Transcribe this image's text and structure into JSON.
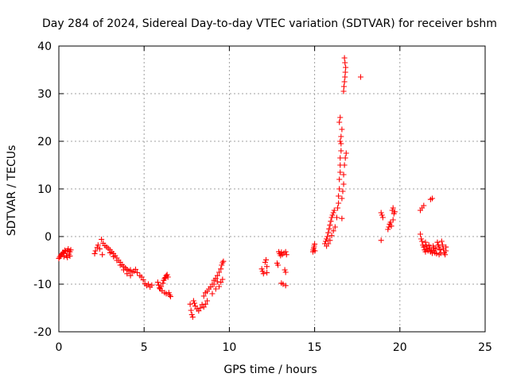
{
  "chart_data": {
    "type": "scatter",
    "title": "Day 284 of 2024, Sidereal Day-to-day VTEC variation (SDTVAR) for receiver bshm",
    "xlabel": "GPS time / hours",
    "ylabel": "SDTVAR / TECUs",
    "xlim": [
      0,
      25
    ],
    "ylim": [
      -20,
      40
    ],
    "xticks": [
      0,
      5,
      10,
      15,
      20,
      25
    ],
    "yticks": [
      -20,
      -10,
      0,
      10,
      20,
      30,
      40
    ],
    "grid": true,
    "marker": "plus",
    "color": "#ff0000",
    "series": [
      {
        "name": "SDTVAR",
        "points": [
          [
            0.0,
            -4.6
          ],
          [
            0.05,
            -4.3
          ],
          [
            0.1,
            -4.0
          ],
          [
            0.15,
            -3.8
          ],
          [
            0.2,
            -3.6
          ],
          [
            0.25,
            -3.3
          ],
          [
            0.3,
            -3.5
          ],
          [
            0.35,
            -2.9
          ],
          [
            0.4,
            -3.1
          ],
          [
            0.45,
            -4.0
          ],
          [
            0.5,
            -3.0
          ],
          [
            0.55,
            -2.6
          ],
          [
            0.6,
            -3.7
          ],
          [
            0.65,
            -3.2
          ],
          [
            0.7,
            -2.8
          ],
          [
            0.3,
            -4.2
          ],
          [
            0.5,
            -4.4
          ],
          [
            0.65,
            -4.1
          ],
          [
            2.1,
            -3.6
          ],
          [
            2.15,
            -3.0
          ],
          [
            2.25,
            -2.3
          ],
          [
            2.3,
            -1.8
          ],
          [
            2.4,
            -2.6
          ],
          [
            2.5,
            -0.6
          ],
          [
            2.55,
            -3.8
          ],
          [
            2.6,
            -1.4
          ],
          [
            2.7,
            -1.9
          ],
          [
            2.8,
            -2.2
          ],
          [
            2.9,
            -2.5
          ],
          [
            3.0,
            -2.8
          ],
          [
            3.1,
            -3.2
          ],
          [
            3.2,
            -3.6
          ],
          [
            3.3,
            -4.0
          ],
          [
            3.4,
            -4.5
          ],
          [
            3.5,
            -5.0
          ],
          [
            3.6,
            -5.4
          ],
          [
            3.7,
            -5.9
          ],
          [
            3.8,
            -6.3
          ],
          [
            3.9,
            -6.6
          ],
          [
            4.0,
            -6.9
          ],
          [
            4.1,
            -7.2
          ],
          [
            4.2,
            -7.0
          ],
          [
            4.3,
            -7.5
          ],
          [
            4.4,
            -7.3
          ],
          [
            4.5,
            -6.9
          ],
          [
            4.6,
            -7.6
          ],
          [
            3.0,
            -3.4
          ],
          [
            3.2,
            -4.2
          ],
          [
            3.4,
            -5.0
          ],
          [
            3.6,
            -6.0
          ],
          [
            3.8,
            -7.0
          ],
          [
            4.0,
            -7.8
          ],
          [
            4.2,
            -8.2
          ],
          [
            4.75,
            -8.2
          ],
          [
            4.85,
            -8.5
          ],
          [
            4.95,
            -9.1
          ],
          [
            5.05,
            -9.9
          ],
          [
            5.15,
            -10.3
          ],
          [
            5.25,
            -10.0
          ],
          [
            5.35,
            -10.6
          ],
          [
            5.45,
            -10.2
          ],
          [
            5.8,
            -9.6
          ],
          [
            5.85,
            -10.2
          ],
          [
            5.9,
            -10.8
          ],
          [
            5.95,
            -11.0
          ],
          [
            6.0,
            -10.5
          ],
          [
            6.05,
            -11.4
          ],
          [
            6.1,
            -9.8
          ],
          [
            6.15,
            -9.2
          ],
          [
            6.2,
            -8.8
          ],
          [
            6.25,
            -8.6
          ],
          [
            6.3,
            -8.2
          ],
          [
            6.35,
            -8.0
          ],
          [
            6.4,
            -8.5
          ],
          [
            6.45,
            -11.8
          ],
          [
            6.5,
            -12.3
          ],
          [
            6.55,
            -12.6
          ],
          [
            6.2,
            -11.8
          ],
          [
            6.3,
            -12.0
          ],
          [
            7.7,
            -14.2
          ],
          [
            7.75,
            -15.5
          ],
          [
            7.8,
            -16.4
          ],
          [
            7.85,
            -16.9
          ],
          [
            7.9,
            -13.5
          ],
          [
            7.95,
            -14.0
          ],
          [
            8.0,
            -14.6
          ],
          [
            8.1,
            -15.2
          ],
          [
            8.2,
            -15.6
          ],
          [
            8.3,
            -15.0
          ],
          [
            8.4,
            -14.3
          ],
          [
            8.5,
            -14.8
          ],
          [
            8.6,
            -14.2
          ],
          [
            8.7,
            -13.5
          ],
          [
            8.5,
            -12.5
          ],
          [
            8.6,
            -11.8
          ],
          [
            8.7,
            -11.5
          ],
          [
            8.8,
            -11.0
          ],
          [
            8.9,
            -10.6
          ],
          [
            9.0,
            -10.0
          ],
          [
            9.1,
            -9.2
          ],
          [
            9.2,
            -8.8
          ],
          [
            9.3,
            -8.2
          ],
          [
            9.4,
            -7.5
          ],
          [
            9.5,
            -6.8
          ],
          [
            9.55,
            -6.0
          ],
          [
            9.6,
            -5.5
          ],
          [
            9.65,
            -5.2
          ],
          [
            9.0,
            -12.0
          ],
          [
            9.2,
            -11.0
          ],
          [
            9.4,
            -10.5
          ],
          [
            9.5,
            -9.6
          ],
          [
            9.6,
            -9.0
          ],
          [
            9.1,
            -10.0
          ],
          [
            9.3,
            -9.5
          ],
          [
            11.9,
            -6.8
          ],
          [
            11.95,
            -7.3
          ],
          [
            12.0,
            -7.8
          ],
          [
            12.1,
            -5.4
          ],
          [
            12.15,
            -4.9
          ],
          [
            12.2,
            -6.3
          ],
          [
            12.2,
            -7.6
          ],
          [
            12.8,
            -5.6
          ],
          [
            12.85,
            -6.0
          ],
          [
            12.9,
            -3.2
          ],
          [
            12.95,
            -3.6
          ],
          [
            13.0,
            -4.0
          ],
          [
            13.05,
            -3.3
          ],
          [
            13.1,
            -3.8
          ],
          [
            13.2,
            -3.5
          ],
          [
            13.3,
            -3.2
          ],
          [
            13.35,
            -3.8
          ],
          [
            13.05,
            -9.8
          ],
          [
            13.15,
            -10.0
          ],
          [
            13.3,
            -10.3
          ],
          [
            13.25,
            -7.0
          ],
          [
            13.3,
            -7.5
          ],
          [
            14.9,
            -3.2
          ],
          [
            14.92,
            -2.8
          ],
          [
            14.95,
            -2.4
          ],
          [
            14.97,
            -2.0
          ],
          [
            15.0,
            -1.6
          ],
          [
            15.02,
            -3.0
          ],
          [
            15.6,
            -1.5
          ],
          [
            15.65,
            -1.0
          ],
          [
            15.7,
            -0.5
          ],
          [
            15.75,
            0.0
          ],
          [
            15.8,
            0.8
          ],
          [
            15.85,
            1.6
          ],
          [
            15.9,
            2.4
          ],
          [
            15.95,
            3.2
          ],
          [
            16.0,
            4.0
          ],
          [
            16.05,
            4.5
          ],
          [
            16.1,
            5.0
          ],
          [
            16.15,
            5.5
          ],
          [
            15.7,
            -2.0
          ],
          [
            15.8,
            -1.5
          ],
          [
            15.9,
            -0.8
          ],
          [
            16.0,
            0.2
          ],
          [
            16.1,
            1.2
          ],
          [
            16.2,
            2.0
          ],
          [
            16.3,
            4.0
          ],
          [
            16.35,
            6.0
          ],
          [
            16.4,
            7.0
          ],
          [
            16.4,
            8.5
          ],
          [
            16.45,
            10.0
          ],
          [
            16.45,
            12.0
          ],
          [
            16.5,
            13.5
          ],
          [
            16.5,
            15.0
          ],
          [
            16.5,
            16.5
          ],
          [
            16.55,
            18.0
          ],
          [
            16.55,
            19.5
          ],
          [
            16.55,
            21.0
          ],
          [
            16.6,
            22.5
          ],
          [
            16.45,
            24.0
          ],
          [
            16.5,
            25.0
          ],
          [
            16.6,
            3.8
          ],
          [
            16.6,
            8.0
          ],
          [
            16.65,
            9.5
          ],
          [
            16.7,
            11.0
          ],
          [
            16.7,
            13.0
          ],
          [
            16.75,
            15.0
          ],
          [
            16.8,
            16.5
          ],
          [
            16.85,
            17.5
          ],
          [
            16.5,
            20.0
          ],
          [
            16.7,
            30.5
          ],
          [
            16.72,
            31.5
          ],
          [
            16.75,
            32.5
          ],
          [
            16.78,
            33.5
          ],
          [
            16.8,
            34.5
          ],
          [
            16.82,
            35.5
          ],
          [
            16.78,
            36.5
          ],
          [
            16.75,
            37.5
          ],
          [
            17.7,
            33.5
          ],
          [
            18.9,
            -0.8
          ],
          [
            18.9,
            5.0
          ],
          [
            18.95,
            4.5
          ],
          [
            19.0,
            4.0
          ],
          [
            19.3,
            1.5
          ],
          [
            19.35,
            2.0
          ],
          [
            19.4,
            2.6
          ],
          [
            19.45,
            3.0
          ],
          [
            19.5,
            2.2
          ],
          [
            19.55,
            5.5
          ],
          [
            19.6,
            6.0
          ],
          [
            19.65,
            4.8
          ],
          [
            19.7,
            5.2
          ],
          [
            19.6,
            3.5
          ],
          [
            21.2,
            5.5
          ],
          [
            21.3,
            6.0
          ],
          [
            21.4,
            6.5
          ],
          [
            21.8,
            7.8
          ],
          [
            21.9,
            8.0
          ],
          [
            21.2,
            0.5
          ],
          [
            21.25,
            -0.5
          ],
          [
            21.3,
            -1.0
          ],
          [
            21.35,
            -1.8
          ],
          [
            21.4,
            -2.2
          ],
          [
            21.45,
            -2.8
          ],
          [
            21.5,
            -1.2
          ],
          [
            21.55,
            -2.0
          ],
          [
            21.6,
            -2.6
          ],
          [
            21.65,
            -3.0
          ],
          [
            21.7,
            -1.8
          ],
          [
            21.75,
            -2.4
          ],
          [
            21.8,
            -3.2
          ],
          [
            21.85,
            -2.8
          ],
          [
            21.9,
            -3.5
          ],
          [
            21.95,
            -2.0
          ],
          [
            22.0,
            -3.0
          ],
          [
            22.05,
            -3.4
          ],
          [
            22.1,
            -2.6
          ],
          [
            22.15,
            -3.6
          ],
          [
            22.2,
            -1.2
          ],
          [
            22.25,
            -1.8
          ],
          [
            22.3,
            -2.2
          ],
          [
            22.35,
            -2.8
          ],
          [
            22.4,
            -3.5
          ],
          [
            22.45,
            -1.0
          ],
          [
            22.5,
            -1.8
          ],
          [
            22.55,
            -2.6
          ],
          [
            22.6,
            -3.4
          ],
          [
            22.65,
            -3.8
          ],
          [
            22.7,
            -2.2
          ],
          [
            22.7,
            -3.0
          ],
          [
            21.5,
            -3.2
          ],
          [
            22.0,
            -2.4
          ],
          [
            22.3,
            -3.8
          ]
        ]
      }
    ]
  }
}
